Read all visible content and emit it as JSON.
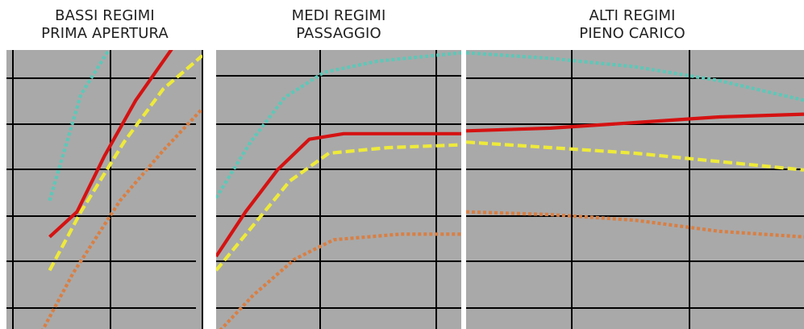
{
  "colors": {
    "background": "#a9a9a9",
    "gridline": "#000000",
    "teal": "#5cc8b8",
    "red": "#d51212",
    "yellow": "#eeea3a",
    "orange": "#d97f43"
  },
  "chart_data": [
    {
      "type": "line",
      "title_lines": [
        "BASSI REGIMI",
        "PRIMA APERTURA"
      ],
      "xlim": [
        0,
        1
      ],
      "ylim": [
        0,
        1
      ],
      "grid": true,
      "series": [
        {
          "color_key": "teal",
          "style": "dotted",
          "x": [
            0.22,
            0.38,
            0.54,
            0.72
          ],
          "y": [
            0.46,
            0.84,
            1.02,
            1.12
          ]
        },
        {
          "color_key": "red",
          "style": "solid",
          "x": [
            0.22,
            0.36,
            0.5,
            0.66,
            0.86
          ],
          "y": [
            0.33,
            0.42,
            0.62,
            0.82,
            1.02
          ]
        },
        {
          "color_key": "yellow",
          "style": "dashed",
          "x": [
            0.22,
            0.38,
            0.6,
            0.8,
            1.0
          ],
          "y": [
            0.21,
            0.42,
            0.67,
            0.86,
            0.98
          ]
        },
        {
          "color_key": "orange",
          "style": "dotted",
          "x": [
            0.18,
            0.34,
            0.58,
            0.8,
            1.0
          ],
          "y": [
            -0.01,
            0.2,
            0.46,
            0.64,
            0.79
          ]
        }
      ]
    },
    {
      "type": "line",
      "title_lines": [
        "MEDI REGIMI",
        "PASSAGGIO"
      ],
      "xlim": [
        0,
        1
      ],
      "ylim": [
        0,
        1
      ],
      "grid": true,
      "series": [
        {
          "color_key": "teal",
          "style": "dotted",
          "x": [
            0.0,
            0.14,
            0.28,
            0.44,
            0.66,
            1.0
          ],
          "y": [
            0.47,
            0.67,
            0.83,
            0.92,
            0.96,
            0.99
          ]
        },
        {
          "color_key": "red",
          "style": "solid",
          "x": [
            0.0,
            0.12,
            0.25,
            0.38,
            0.52,
            0.75,
            1.0
          ],
          "y": [
            0.26,
            0.42,
            0.57,
            0.68,
            0.7,
            0.7,
            0.7
          ]
        },
        {
          "color_key": "yellow",
          "style": "dashed",
          "x": [
            0.0,
            0.15,
            0.3,
            0.46,
            0.7,
            1.0
          ],
          "y": [
            0.21,
            0.37,
            0.53,
            0.63,
            0.65,
            0.66
          ]
        },
        {
          "color_key": "orange",
          "style": "dotted",
          "x": [
            0.0,
            0.15,
            0.32,
            0.48,
            0.75,
            1.0
          ],
          "y": [
            -0.02,
            0.12,
            0.25,
            0.32,
            0.34,
            0.34
          ]
        }
      ]
    },
    {
      "type": "line",
      "title_lines": [
        "ALTI REGIMI",
        "PIENO CARICO"
      ],
      "xlim": [
        0,
        1
      ],
      "ylim": [
        0,
        1
      ],
      "grid": true,
      "series": [
        {
          "color_key": "teal",
          "style": "dotted",
          "x": [
            0.0,
            0.25,
            0.5,
            0.75,
            1.0
          ],
          "y": [
            0.99,
            0.97,
            0.94,
            0.89,
            0.82
          ]
        },
        {
          "color_key": "red",
          "style": "solid",
          "x": [
            0.0,
            0.25,
            0.5,
            0.75,
            1.0
          ],
          "y": [
            0.71,
            0.72,
            0.74,
            0.76,
            0.77
          ]
        },
        {
          "color_key": "yellow",
          "style": "dashed",
          "x": [
            0.0,
            0.25,
            0.5,
            0.75,
            1.0
          ],
          "y": [
            0.67,
            0.65,
            0.63,
            0.6,
            0.57
          ]
        },
        {
          "color_key": "orange",
          "style": "dotted",
          "x": [
            0.0,
            0.25,
            0.5,
            0.75,
            1.0
          ],
          "y": [
            0.42,
            0.41,
            0.39,
            0.35,
            0.33
          ]
        }
      ]
    }
  ]
}
